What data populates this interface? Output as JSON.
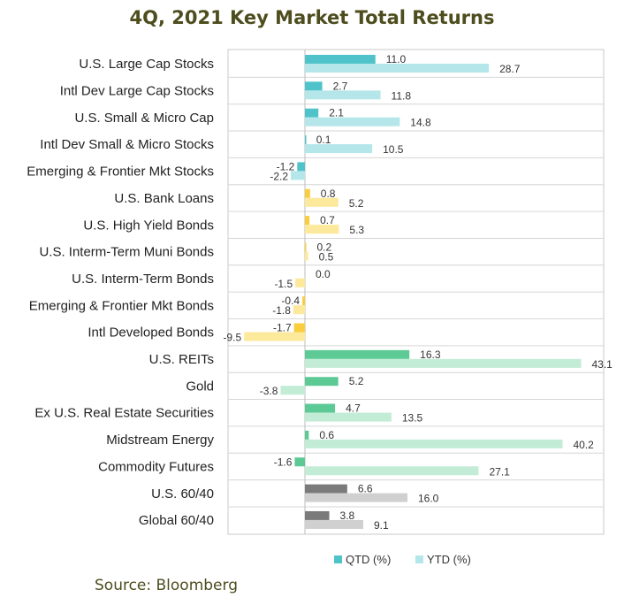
{
  "title": "4Q, 2021 Key Market Total Returns",
  "source": "Source: Bloomberg",
  "chart_data": {
    "type": "bar",
    "orientation": "horizontal",
    "title": "4Q, 2021 Key Market Total Returns",
    "xlim": [
      -12,
      47
    ],
    "grid": false,
    "legend_position": "bottom-right",
    "categories": [
      "U.S. Large Cap Stocks",
      "Intl Dev Large Cap Stocks",
      "U.S. Small & Micro Cap",
      "Intl Dev Small & Micro Stocks",
      "Emerging & Frontier Mkt Stocks",
      "U.S. Bank Loans",
      "U.S. High Yield Bonds",
      "U.S. Interm-Term Muni Bonds",
      "U.S. Interm-Term Bonds",
      "Emerging & Frontier Mkt Bonds",
      "Intl Developed Bonds",
      "U.S. REITs",
      "Gold",
      "Ex U.S. Real Estate Securities",
      "Midstream Energy",
      "Commodity Futures",
      "U.S. 60/40",
      "Global 60/40"
    ],
    "groups": [
      "equity",
      "equity",
      "equity",
      "equity",
      "equity",
      "fixed",
      "fixed",
      "fixed",
      "fixed",
      "fixed",
      "fixed",
      "real",
      "real",
      "real",
      "real",
      "real",
      "blend",
      "blend"
    ],
    "group_colors": {
      "equity": {
        "qtd": "#4fc3c9",
        "ytd": "#b4e6ea"
      },
      "fixed": {
        "qtd": "#f9cd3c",
        "ytd": "#fce99b"
      },
      "real": {
        "qtd": "#5dc994",
        "ytd": "#c2ecd6"
      },
      "blend": {
        "qtd": "#7a7a7a",
        "ytd": "#d0d0d0"
      }
    },
    "series": [
      {
        "name": "QTD (%)",
        "key": "qtd",
        "values": [
          11.0,
          2.7,
          2.1,
          0.1,
          -1.2,
          0.8,
          0.7,
          0.2,
          0.0,
          -0.4,
          -1.7,
          16.3,
          5.2,
          4.7,
          0.6,
          -1.6,
          6.6,
          3.8
        ]
      },
      {
        "name": "YTD (%)",
        "key": "ytd",
        "values": [
          28.7,
          11.8,
          14.8,
          10.5,
          -2.2,
          5.2,
          5.3,
          0.5,
          -1.5,
          -1.8,
          -9.5,
          43.1,
          -3.8,
          13.5,
          40.2,
          27.1,
          16.0,
          9.1
        ]
      }
    ],
    "data_labels": {
      "qtd": [
        "11.0",
        "2.7",
        "2.1",
        "0.1",
        "-1.2",
        "0.8",
        "0.7",
        "0.2",
        "0.0",
        "-0.4",
        "-1.7",
        "16.3",
        "5.2",
        "4.7",
        "0.6",
        "-1.6",
        "6.6",
        "3.8"
      ],
      "ytd": [
        "28.7",
        "11.8",
        "14.8",
        "10.5",
        "-2.2",
        "5.2",
        "5.3",
        "0.5",
        "-1.5",
        "-1.8",
        "-9.5",
        "43.1",
        "-3.8",
        "13.5",
        "40.2",
        "27.1",
        "16.0",
        "9.1"
      ]
    },
    "legend": [
      {
        "label": "QTD (%)",
        "color": "#4fc3c9"
      },
      {
        "label": "YTD (%)",
        "color": "#b4e6ea"
      }
    ]
  }
}
